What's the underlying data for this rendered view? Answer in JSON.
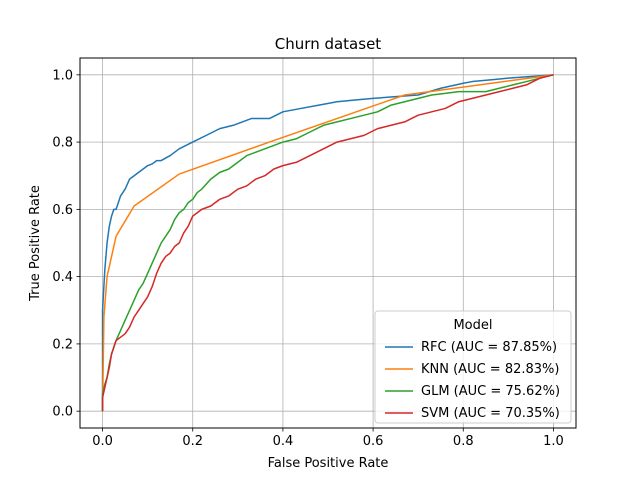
{
  "chart_data": {
    "type": "line",
    "title": "Churn dataset",
    "xlabel": "False Positive Rate",
    "ylabel": "True Positive Rate",
    "xlim": [
      -0.05,
      1.05
    ],
    "ylim": [
      -0.05,
      1.05
    ],
    "grid": true,
    "x_ticks": [
      0.0,
      0.2,
      0.4,
      0.6,
      0.8,
      1.0
    ],
    "x_tick_labels": [
      "0.0",
      "0.2",
      "0.4",
      "0.6",
      "0.8",
      "1.0"
    ],
    "y_ticks": [
      0.0,
      0.2,
      0.4,
      0.6,
      0.8,
      1.0
    ],
    "y_tick_labels": [
      "0.0",
      "0.2",
      "0.4",
      "0.6",
      "0.8",
      "1.0"
    ],
    "legend": {
      "title": "Model",
      "placement": "lower right"
    },
    "series": [
      {
        "name": "RFC (AUC = 87.85%)",
        "color": "#1f77b4",
        "x": [
          0.0,
          0.0,
          0.005,
          0.01,
          0.015,
          0.02,
          0.025,
          0.03,
          0.04,
          0.05,
          0.06,
          0.07,
          0.08,
          0.09,
          0.1,
          0.11,
          0.12,
          0.13,
          0.15,
          0.17,
          0.2,
          0.23,
          0.26,
          0.29,
          0.33,
          0.37,
          0.4,
          0.44,
          0.48,
          0.52,
          0.56,
          0.6,
          0.65,
          0.7,
          0.75,
          0.8,
          0.82,
          0.86,
          0.9,
          0.95,
          1.0
        ],
        "y": [
          0.0,
          0.3,
          0.42,
          0.5,
          0.55,
          0.58,
          0.6,
          0.6,
          0.64,
          0.66,
          0.69,
          0.7,
          0.71,
          0.72,
          0.73,
          0.735,
          0.745,
          0.745,
          0.76,
          0.78,
          0.8,
          0.82,
          0.84,
          0.85,
          0.87,
          0.87,
          0.89,
          0.9,
          0.91,
          0.92,
          0.925,
          0.93,
          0.935,
          0.94,
          0.96,
          0.975,
          0.98,
          0.985,
          0.99,
          0.995,
          1.0
        ]
      },
      {
        "name": "KNN (AUC = 82.83%)",
        "color": "#ff7f0e",
        "x": [
          0.0,
          0.003,
          0.01,
          0.03,
          0.07,
          0.17,
          0.37,
          0.67,
          1.0
        ],
        "y": [
          0.0,
          0.28,
          0.4,
          0.52,
          0.61,
          0.705,
          0.8,
          0.94,
          1.0
        ]
      },
      {
        "name": "GLM (AUC = 75.62%)",
        "color": "#2ca02c",
        "x": [
          0.0,
          0.0,
          0.005,
          0.01,
          0.015,
          0.02,
          0.03,
          0.04,
          0.05,
          0.06,
          0.07,
          0.08,
          0.09,
          0.1,
          0.11,
          0.12,
          0.13,
          0.14,
          0.15,
          0.16,
          0.17,
          0.18,
          0.19,
          0.2,
          0.21,
          0.22,
          0.24,
          0.26,
          0.28,
          0.3,
          0.32,
          0.34,
          0.36,
          0.38,
          0.4,
          0.43,
          0.46,
          0.49,
          0.52,
          0.55,
          0.58,
          0.61,
          0.64,
          0.67,
          0.7,
          0.73,
          0.76,
          0.79,
          0.82,
          0.85,
          0.88,
          0.91,
          0.94,
          0.97,
          1.0
        ],
        "y": [
          0.0,
          0.05,
          0.08,
          0.1,
          0.14,
          0.17,
          0.21,
          0.24,
          0.27,
          0.3,
          0.33,
          0.36,
          0.38,
          0.41,
          0.44,
          0.47,
          0.5,
          0.52,
          0.54,
          0.57,
          0.59,
          0.6,
          0.62,
          0.63,
          0.65,
          0.66,
          0.69,
          0.71,
          0.72,
          0.74,
          0.76,
          0.77,
          0.78,
          0.79,
          0.8,
          0.81,
          0.83,
          0.85,
          0.86,
          0.87,
          0.88,
          0.89,
          0.91,
          0.92,
          0.93,
          0.94,
          0.945,
          0.95,
          0.95,
          0.95,
          0.96,
          0.97,
          0.98,
          0.99,
          1.0
        ]
      },
      {
        "name": "SVM (AUC = 70.35%)",
        "color": "#d62728",
        "x": [
          0.0,
          0.0,
          0.005,
          0.01,
          0.015,
          0.02,
          0.03,
          0.04,
          0.05,
          0.06,
          0.07,
          0.08,
          0.09,
          0.1,
          0.11,
          0.12,
          0.13,
          0.14,
          0.15,
          0.16,
          0.17,
          0.18,
          0.19,
          0.2,
          0.22,
          0.24,
          0.26,
          0.28,
          0.3,
          0.32,
          0.34,
          0.36,
          0.38,
          0.4,
          0.43,
          0.46,
          0.49,
          0.52,
          0.55,
          0.58,
          0.61,
          0.64,
          0.67,
          0.7,
          0.73,
          0.76,
          0.79,
          0.82,
          0.85,
          0.88,
          0.91,
          0.94,
          0.97,
          1.0
        ],
        "y": [
          0.0,
          0.04,
          0.07,
          0.1,
          0.13,
          0.17,
          0.21,
          0.22,
          0.23,
          0.25,
          0.28,
          0.3,
          0.32,
          0.34,
          0.37,
          0.41,
          0.44,
          0.46,
          0.47,
          0.49,
          0.5,
          0.53,
          0.55,
          0.58,
          0.6,
          0.61,
          0.63,
          0.64,
          0.66,
          0.67,
          0.69,
          0.7,
          0.72,
          0.73,
          0.74,
          0.76,
          0.78,
          0.8,
          0.81,
          0.82,
          0.84,
          0.85,
          0.86,
          0.88,
          0.89,
          0.9,
          0.92,
          0.93,
          0.94,
          0.95,
          0.96,
          0.97,
          0.99,
          1.0
        ]
      }
    ]
  }
}
